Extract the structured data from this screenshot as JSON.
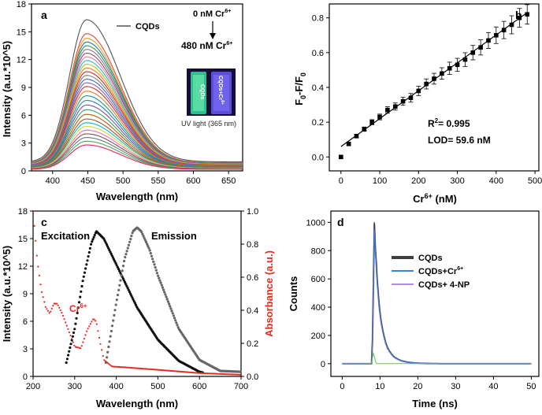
{
  "chart_data": [
    {
      "panel": "a",
      "type": "line",
      "xlabel": "Wavelength (nm)",
      "ylabel": "Intensity (a.u.*10^5)",
      "xlim": [
        370,
        670
      ],
      "ylim": [
        0,
        18
      ],
      "xticks": [
        400,
        450,
        500,
        550,
        600,
        650
      ],
      "yticks": [
        0,
        3,
        6,
        9,
        12,
        15,
        18
      ],
      "legend": "CQDs",
      "arrow_top": "0 nM Cr",
      "arrow_bottom": "480 nM Cr",
      "ion_sup": "6+",
      "inset_caption": "UV light (365 nm)",
      "vial_left_label": "CQDs",
      "vial_right_label": "CQDs+Cr",
      "peak_nm": 448,
      "peaks": [
        16.3,
        14.8,
        14.3,
        13.9,
        13.5,
        13.1,
        12.7,
        12.3,
        11.9,
        11.5,
        11.1,
        10.7,
        10.3,
        9.9,
        9.5,
        9.1,
        8.6,
        8.1,
        7.6,
        7.1,
        6.6,
        6.1,
        5.6,
        5.2,
        4.8,
        4.4,
        4.0,
        3.6,
        3.2,
        2.8
      ],
      "colors": [
        "#555555",
        "#e8443a",
        "#f39c12",
        "#1f77b4",
        "#2ca02c",
        "#9467bd",
        "#8c564b",
        "#e377c2",
        "#17becf",
        "#bcbd22",
        "#ff7f0e",
        "#d62728",
        "#7f7f7f",
        "#3a6bd6",
        "#9b59b6",
        "#c0392b",
        "#e67e22",
        "#16a085",
        "#2980b9",
        "#8e44ad",
        "#27ae60",
        "#d35400",
        "#a0522d",
        "#00bcd4",
        "#cddc39",
        "#ff69b4",
        "#795548",
        "#607d8b",
        "#4caf50",
        "#e91e63"
      ]
    },
    {
      "panel": "b",
      "type": "scatter",
      "xlabel": "Cr",
      "xlabel_unit": " (nM)",
      "ion_sup": "6+",
      "ylabel": "F0-F/F0",
      "ylabel_parts": [
        "F",
        "0",
        "-F/F",
        "0"
      ],
      "xlim": [
        -30,
        510
      ],
      "ylim": [
        -0.08,
        0.88
      ],
      "xticks": [
        0,
        100,
        200,
        300,
        400,
        500
      ],
      "yticks": [
        0.0,
        0.2,
        0.4,
        0.6,
        0.8
      ],
      "x": [
        0,
        20,
        40,
        60,
        80,
        100,
        120,
        140,
        160,
        180,
        200,
        220,
        240,
        260,
        280,
        300,
        320,
        340,
        360,
        380,
        400,
        420,
        440,
        460,
        480
      ],
      "y": [
        0.0,
        0.075,
        0.12,
        0.16,
        0.2,
        0.23,
        0.27,
        0.29,
        0.32,
        0.34,
        0.38,
        0.42,
        0.45,
        0.48,
        0.51,
        0.53,
        0.56,
        0.6,
        0.63,
        0.67,
        0.7,
        0.73,
        0.76,
        0.8,
        0.82
      ],
      "fit": {
        "x0": 0,
        "y0": 0.06,
        "x1": 480,
        "y1": 0.83
      },
      "r2_label": "R",
      "r2_sup": "2",
      "r2_value": "= 0.995",
      "lod": "LOD= 59.6 nM"
    },
    {
      "panel": "c",
      "type": "line",
      "xlabel": "Wavelength (nm)",
      "ylabel_left": "Intensity (a.u.*10^5)",
      "ylabel_right": "Absorbance (a.u.)",
      "xlim": [
        200,
        700
      ],
      "ylim_left": [
        0,
        18
      ],
      "ylim_right": [
        0,
        1.0
      ],
      "xticks": [
        200,
        300,
        400,
        500,
        600,
        700
      ],
      "yticks_left": [
        0,
        3,
        6,
        9,
        12,
        15,
        18
      ],
      "yticks_right": [
        0.0,
        0.2,
        0.4,
        0.6,
        0.8,
        1.0
      ],
      "excitation_label": "Excitation",
      "emission_label": "Emission",
      "cr_label": "Cr",
      "cr_sup": "6+",
      "right_axis_color": "#e32b22",
      "series": [
        {
          "name": "Excitation",
          "color": "#111111",
          "x": [
            280,
            300,
            320,
            340,
            352,
            370,
            400,
            450,
            500,
            550,
            600,
            610
          ],
          "y": [
            1.5,
            5.2,
            10.5,
            14.5,
            15.8,
            15.0,
            12.2,
            7.5,
            4.0,
            1.7,
            0.5,
            0.4
          ]
        },
        {
          "name": "Emission",
          "color": "#666666",
          "x": [
            375,
            400,
            420,
            440,
            450,
            460,
            480,
            500,
            550,
            600,
            650,
            700
          ],
          "y": [
            1.5,
            8.0,
            12.8,
            15.8,
            16.2,
            15.8,
            13.8,
            11.0,
            5.2,
            1.8,
            0.6,
            0.5
          ]
        },
        {
          "name": "Absorbance",
          "color": "#e32b22",
          "x": [
            200,
            205,
            210,
            220,
            230,
            240,
            250,
            258,
            270,
            285,
            300,
            315,
            330,
            345,
            352,
            360,
            370,
            390,
            420,
            500,
            600,
            700
          ],
          "y": [
            1.0,
            0.85,
            0.7,
            0.52,
            0.42,
            0.38,
            0.44,
            0.44,
            0.38,
            0.28,
            0.18,
            0.17,
            0.28,
            0.35,
            0.33,
            0.22,
            0.1,
            0.06,
            0.055,
            0.04,
            0.02,
            0.01
          ]
        }
      ]
    },
    {
      "panel": "d",
      "type": "line",
      "xlabel": "Time (ns)",
      "ylabel": "Counts",
      "xlim": [
        -3,
        52
      ],
      "ylim": [
        -90,
        1080
      ],
      "xticks": [
        0,
        10,
        20,
        30,
        40,
        50
      ],
      "yticks": [
        0,
        200,
        400,
        600,
        800,
        1000
      ],
      "legend": [
        {
          "label": "CQDs",
          "sup": "",
          "color": "#404040"
        },
        {
          "label": "CQDs+Cr",
          "sup": "6+",
          "color": "#3a86d9"
        },
        {
          "label": "CQDs+ 4-NP",
          "sup": "",
          "color": "#b48be6"
        }
      ],
      "peak_time": 8.5,
      "peak_counts": 1000,
      "decay_ns": 3.5
    }
  ]
}
